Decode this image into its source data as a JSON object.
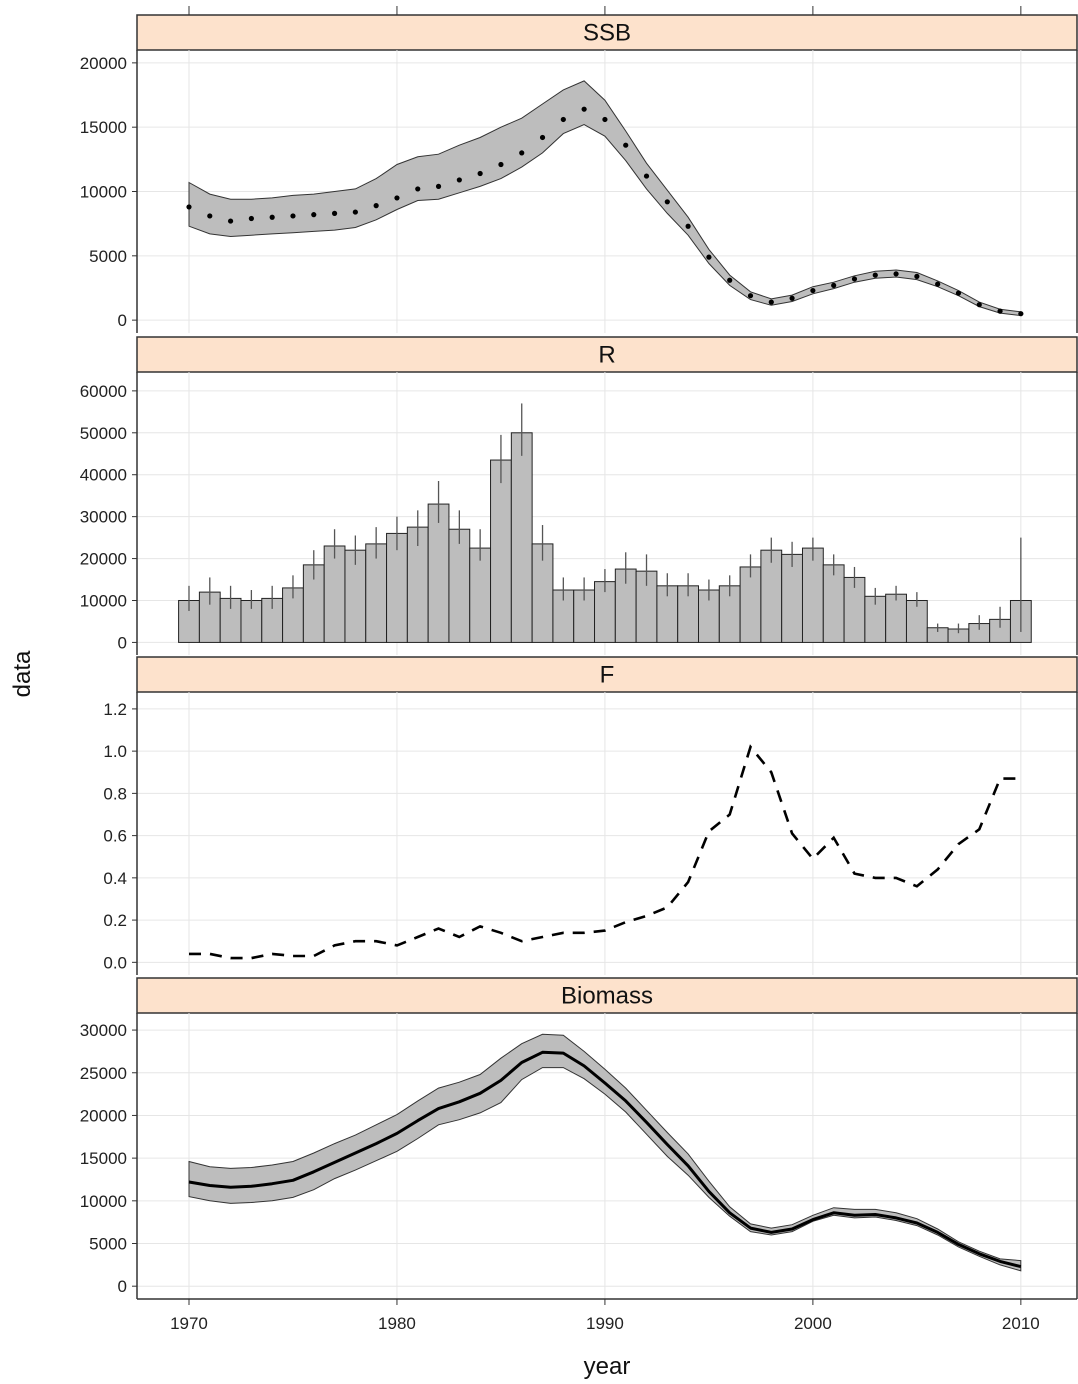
{
  "figure": {
    "xlabel": "year",
    "ylabel": "data",
    "x_ticks": [
      1970,
      1980,
      1990,
      2000,
      2010
    ],
    "x_range": [
      1967.5,
      2012.7
    ],
    "colors": {
      "strip_fill": "#fde2cc",
      "band_fill": "#bdbdbd",
      "bar_fill": "#bdbdbd",
      "line": "#000000",
      "grid": "#e6e6e6"
    }
  },
  "chart_data": [
    {
      "type": "area",
      "panel": "SSB",
      "ylim": [
        -1000,
        21000
      ],
      "y_ticks": [
        0,
        5000,
        10000,
        15000,
        20000
      ],
      "line_style": "dotted",
      "x": [
        1970,
        1971,
        1972,
        1973,
        1974,
        1975,
        1976,
        1977,
        1978,
        1979,
        1980,
        1981,
        1982,
        1983,
        1984,
        1985,
        1986,
        1987,
        1988,
        1989,
        1990,
        1991,
        1992,
        1993,
        1994,
        1995,
        1996,
        1997,
        1998,
        1999,
        2000,
        2001,
        2002,
        2003,
        2004,
        2005,
        2006,
        2007,
        2008,
        2009,
        2010
      ],
      "y": [
        8800,
        8100,
        7700,
        7900,
        8000,
        8100,
        8200,
        8300,
        8400,
        8900,
        9500,
        10200,
        10400,
        10900,
        11400,
        12100,
        13000,
        14200,
        15600,
        16400,
        15600,
        13600,
        11200,
        9200,
        7300,
        4900,
        3100,
        1900,
        1400,
        1700,
        2300,
        2700,
        3200,
        3500,
        3600,
        3400,
        2800,
        2100,
        1200,
        700,
        500
      ],
      "lower": [
        7300,
        6700,
        6500,
        6600,
        6700,
        6800,
        6900,
        7000,
        7200,
        7800,
        8600,
        9300,
        9400,
        9900,
        10400,
        11000,
        11900,
        13000,
        14500,
        15200,
        14300,
        12400,
        10200,
        8300,
        6600,
        4400,
        2700,
        1600,
        1150,
        1450,
        2050,
        2450,
        2950,
        3250,
        3350,
        3150,
        2600,
        1900,
        1050,
        550,
        350
      ],
      "upper": [
        10700,
        9800,
        9400,
        9400,
        9500,
        9700,
        9800,
        10000,
        10200,
        11000,
        12100,
        12700,
        12900,
        13600,
        14200,
        15000,
        15700,
        16800,
        17900,
        18600,
        17100,
        14700,
        12200,
        10100,
        8000,
        5500,
        3500,
        2200,
        1650,
        1950,
        2600,
        2950,
        3450,
        3800,
        3900,
        3700,
        3050,
        2300,
        1400,
        850,
        650
      ]
    },
    {
      "type": "bar",
      "panel": "R",
      "ylim": [
        -3000,
        64500
      ],
      "y_ticks": [
        0,
        10000,
        20000,
        30000,
        40000,
        50000,
        60000
      ],
      "x": [
        1970,
        1971,
        1972,
        1973,
        1974,
        1975,
        1976,
        1977,
        1978,
        1979,
        1980,
        1981,
        1982,
        1983,
        1984,
        1985,
        1986,
        1987,
        1988,
        1989,
        1990,
        1991,
        1992,
        1993,
        1994,
        1995,
        1996,
        1997,
        1998,
        1999,
        2000,
        2001,
        2002,
        2003,
        2004,
        2005,
        2006,
        2007,
        2008,
        2009,
        2010
      ],
      "values": [
        10000,
        12000,
        10500,
        10000,
        10500,
        13000,
        18500,
        23000,
        22000,
        23500,
        26000,
        27500,
        33000,
        27000,
        22500,
        43500,
        50000,
        23500,
        12500,
        12500,
        14500,
        17500,
        17000,
        13500,
        13500,
        12500,
        13500,
        18000,
        22000,
        21000,
        22500,
        18500,
        15500,
        11000,
        11500,
        10000,
        3500,
        3200,
        4500,
        5500,
        10000
      ],
      "lower": [
        7500,
        9000,
        8000,
        8000,
        8000,
        10500,
        15000,
        20000,
        18500,
        20000,
        22000,
        23000,
        28500,
        23500,
        19500,
        38000,
        44500,
        19500,
        10000,
        10000,
        12000,
        14000,
        13500,
        11000,
        11000,
        10000,
        11000,
        15500,
        19000,
        18000,
        19500,
        16000,
        13000,
        9000,
        10000,
        8500,
        2500,
        2200,
        3000,
        3500,
        2500
      ],
      "upper": [
        13500,
        15500,
        13500,
        12500,
        13500,
        16000,
        22000,
        27000,
        25500,
        27500,
        30000,
        31500,
        38500,
        31500,
        27000,
        49500,
        57000,
        28000,
        15500,
        15500,
        17500,
        21500,
        21000,
        16500,
        16500,
        15000,
        16000,
        21000,
        25000,
        24000,
        25000,
        21000,
        18000,
        13000,
        13500,
        12000,
        4500,
        4500,
        6500,
        8500,
        25000
      ]
    },
    {
      "type": "line",
      "panel": "F",
      "ylim": [
        -0.06,
        1.28
      ],
      "y_ticks": [
        0.0,
        0.2,
        0.4,
        0.6,
        0.8,
        1.0,
        1.2
      ],
      "line_style": "dashed",
      "x": [
        1970,
        1971,
        1972,
        1973,
        1974,
        1975,
        1976,
        1977,
        1978,
        1979,
        1980,
        1981,
        1982,
        1983,
        1984,
        1985,
        1986,
        1987,
        1988,
        1989,
        1990,
        1991,
        1992,
        1993,
        1994,
        1995,
        1996,
        1997,
        1998,
        1999,
        2000,
        2001,
        2002,
        2003,
        2004,
        2005,
        2006,
        2007,
        2008,
        2009,
        2010
      ],
      "y": [
        0.04,
        0.04,
        0.02,
        0.02,
        0.04,
        0.03,
        0.03,
        0.08,
        0.1,
        0.1,
        0.08,
        0.12,
        0.16,
        0.12,
        0.17,
        0.14,
        0.1,
        0.12,
        0.14,
        0.14,
        0.15,
        0.19,
        0.22,
        0.26,
        0.38,
        0.62,
        0.7,
        1.02,
        0.9,
        0.61,
        0.49,
        0.59,
        0.42,
        0.4,
        0.4,
        0.36,
        0.44,
        0.56,
        0.63,
        0.87,
        0.87
      ]
    },
    {
      "type": "area",
      "panel": "Biomass",
      "ylim": [
        -1500,
        32000
      ],
      "y_ticks": [
        0,
        5000,
        10000,
        15000,
        20000,
        25000,
        30000
      ],
      "line_style": "solid",
      "x": [
        1970,
        1971,
        1972,
        1973,
        1974,
        1975,
        1976,
        1977,
        1978,
        1979,
        1980,
        1981,
        1982,
        1983,
        1984,
        1985,
        1986,
        1987,
        1988,
        1989,
        1990,
        1991,
        1992,
        1993,
        1994,
        1995,
        1996,
        1997,
        1998,
        1999,
        2000,
        2001,
        2002,
        2003,
        2004,
        2005,
        2006,
        2007,
        2008,
        2009,
        2010
      ],
      "y": [
        12200,
        11800,
        11600,
        11700,
        12000,
        12400,
        13400,
        14500,
        15600,
        16700,
        17900,
        19400,
        20800,
        21600,
        22600,
        24100,
        26200,
        27400,
        27300,
        25800,
        23800,
        21700,
        19200,
        16600,
        14100,
        11100,
        8600,
        6800,
        6300,
        6700,
        7800,
        8600,
        8300,
        8400,
        8000,
        7400,
        6300,
        4900,
        3800,
        2900,
        2300
      ],
      "lower": [
        10500,
        10000,
        9700,
        9800,
        10000,
        10400,
        11300,
        12600,
        13600,
        14700,
        15800,
        17300,
        18900,
        19500,
        20300,
        21500,
        24200,
        25600,
        25600,
        24300,
        22500,
        20400,
        17800,
        15200,
        13000,
        10400,
        8200,
        6400,
        6000,
        6400,
        7600,
        8300,
        8000,
        8100,
        7700,
        7100,
        6000,
        4600,
        3500,
        2500,
        1800
      ],
      "upper": [
        14600,
        14000,
        13800,
        13900,
        14200,
        14600,
        15600,
        16700,
        17700,
        18900,
        20100,
        21700,
        23200,
        23900,
        24800,
        26700,
        28400,
        29500,
        29400,
        27500,
        25400,
        23200,
        20600,
        18000,
        15500,
        12300,
        9300,
        7300,
        6800,
        7200,
        8300,
        9200,
        9000,
        9000,
        8600,
        7900,
        6700,
        5200,
        4100,
        3200,
        3000
      ]
    }
  ]
}
